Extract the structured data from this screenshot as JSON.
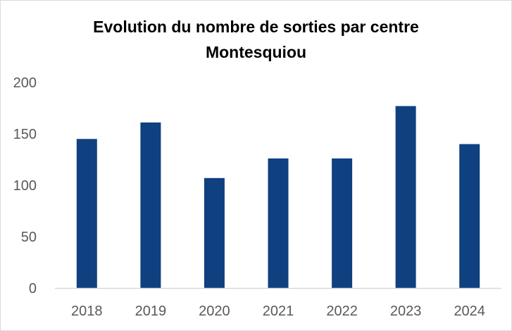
{
  "chart_data": {
    "type": "bar",
    "title_lines": [
      "Evolution du nombre de sorties par centre",
      "Montesquiou"
    ],
    "categories": [
      "2018",
      "2019",
      "2020",
      "2021",
      "2022",
      "2023",
      "2024"
    ],
    "values": [
      145,
      161,
      107,
      126,
      126,
      177,
      140
    ],
    "ylim": [
      0,
      200
    ],
    "yticks": [
      0,
      50,
      100,
      150,
      200
    ],
    "xlabel": "",
    "ylabel": "",
    "grid": false,
    "legend": "none",
    "bar_color": "#0f4080",
    "axis_color": "#d9d9d9"
  }
}
